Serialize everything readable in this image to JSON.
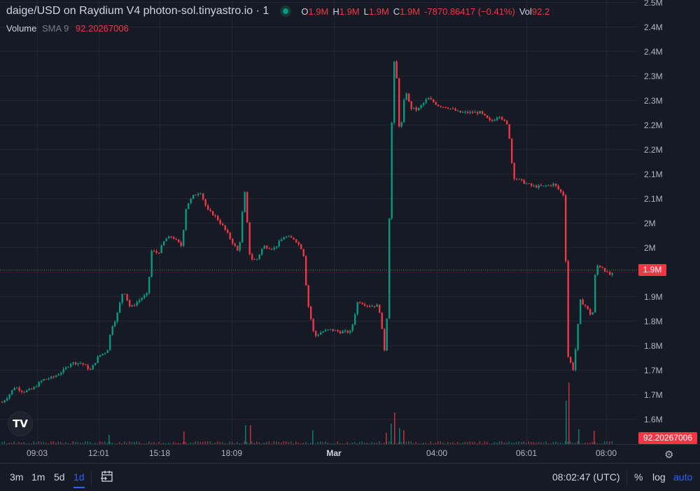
{
  "header": {
    "title": "daige/USD on Raydium V4 photon-sol.tinyastro.io · 1",
    "ohlc": [
      {
        "key": "O",
        "value": "1.9M"
      },
      {
        "key": "H",
        "value": "1.9M"
      },
      {
        "key": "L",
        "value": "1.9M"
      },
      {
        "key": "C",
        "value": "1.9M"
      }
    ],
    "change": "-7870.86417 (−0.41%)",
    "vol_label": "Vol",
    "vol_value": "92.2"
  },
  "volume_legend": {
    "label": "Volume",
    "sma": "SMA 9",
    "value": "92.20267006"
  },
  "price_axis": [
    "2.5M",
    "2.4M",
    "2.4M",
    "2.3M",
    "2.3M",
    "2.2M",
    "2.2M",
    "2.1M",
    "2.1M",
    "2M",
    "2M",
    "1.9M",
    "1.9M",
    "1.8M",
    "1.8M",
    "1.7M",
    "1.7M",
    "1.6M"
  ],
  "last_price_badge": "1.9M",
  "volume_badge": "92.20267006",
  "time_axis": [
    "09:03",
    "12:01",
    "15:18",
    "18:09",
    "Mar",
    "04:00",
    "06:01",
    "08:00"
  ],
  "logo_text": "TV",
  "colors": {
    "up": "#089981",
    "down": "#f23645",
    "bg": "#161a25",
    "grid": "#232632",
    "accent": "#2962ff"
  },
  "bottom_bar": {
    "timeframes": [
      "3m",
      "1m",
      "5d",
      "1d"
    ],
    "active_timeframe": "1d",
    "clock": "08:02:47 (UTC)",
    "percent": "%",
    "log": "log",
    "auto": "auto"
  },
  "chart_data": {
    "type": "candlestick",
    "x": [
      "09:03",
      "12:01",
      "15:18",
      "18:09",
      "Mar",
      "04:00",
      "06:01",
      "08:00"
    ],
    "y_range": [
      1.575,
      2.5
    ],
    "last_price": 1.9,
    "close_path": [
      [
        0,
        1.66
      ],
      [
        10,
        1.675
      ],
      [
        20,
        1.695
      ],
      [
        32,
        1.685
      ],
      [
        45,
        1.69
      ],
      [
        60,
        1.71
      ],
      [
        75,
        1.715
      ],
      [
        90,
        1.73
      ],
      [
        100,
        1.745
      ],
      [
        115,
        1.745
      ],
      [
        128,
        1.73
      ],
      [
        140,
        1.76
      ],
      [
        152,
        1.77
      ],
      [
        158,
        1.82
      ],
      [
        165,
        1.84
      ],
      [
        175,
        1.9
      ],
      [
        185,
        1.86
      ],
      [
        200,
        1.88
      ],
      [
        210,
        1.89
      ],
      [
        215,
        1.98
      ],
      [
        225,
        1.975
      ],
      [
        235,
        2.005
      ],
      [
        245,
        2.01
      ],
      [
        258,
        1.99
      ],
      [
        265,
        2.075
      ],
      [
        275,
        2.095
      ],
      [
        285,
        2.105
      ],
      [
        295,
        2.065
      ],
      [
        305,
        2.055
      ],
      [
        318,
        2.03
      ],
      [
        330,
        2.0
      ],
      [
        340,
        1.975
      ],
      [
        348,
        2.11
      ],
      [
        356,
        1.965
      ],
      [
        365,
        1.96
      ],
      [
        375,
        1.99
      ],
      [
        390,
        1.985
      ],
      [
        405,
        2.01
      ],
      [
        420,
        2.005
      ],
      [
        432,
        1.98
      ],
      [
        438,
        1.875
      ],
      [
        448,
        1.8
      ],
      [
        458,
        1.81
      ],
      [
        470,
        1.815
      ],
      [
        485,
        1.81
      ],
      [
        500,
        1.81
      ],
      [
        510,
        1.875
      ],
      [
        525,
        1.865
      ],
      [
        540,
        1.865
      ],
      [
        550,
        1.75
      ],
      [
        558,
        2.23
      ],
      [
        563,
        2.41
      ],
      [
        570,
        2.215
      ],
      [
        578,
        2.32
      ],
      [
        585,
        2.28
      ],
      [
        595,
        2.275
      ],
      [
        610,
        2.3
      ],
      [
        625,
        2.285
      ],
      [
        640,
        2.28
      ],
      [
        655,
        2.27
      ],
      [
        670,
        2.27
      ],
      [
        685,
        2.27
      ],
      [
        700,
        2.25
      ],
      [
        712,
        2.265
      ],
      [
        725,
        2.24
      ],
      [
        732,
        2.135
      ],
      [
        745,
        2.125
      ],
      [
        760,
        2.115
      ],
      [
        775,
        2.115
      ],
      [
        790,
        2.12
      ],
      [
        805,
        2.095
      ],
      [
        810,
        1.76
      ],
      [
        818,
        1.73
      ],
      [
        828,
        1.875
      ],
      [
        835,
        1.865
      ],
      [
        845,
        1.84
      ],
      [
        850,
        1.95
      ],
      [
        860,
        1.945
      ],
      [
        868,
        1.93
      ],
      [
        875,
        1.93
      ]
    ],
    "volume_spikes": [
      [
        155,
        13
      ],
      [
        262,
        18
      ],
      [
        350,
        27
      ],
      [
        357,
        27
      ],
      [
        446,
        20
      ],
      [
        551,
        16
      ],
      [
        558,
        29
      ],
      [
        563,
        45
      ],
      [
        570,
        23
      ],
      [
        576,
        20
      ],
      [
        808,
        62
      ],
      [
        812,
        88
      ],
      [
        826,
        21
      ],
      [
        848,
        19
      ]
    ]
  }
}
